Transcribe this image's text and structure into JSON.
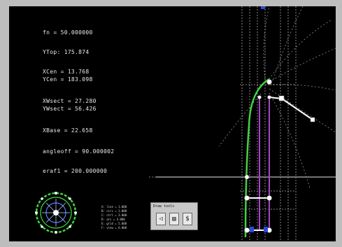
{
  "readouts": {
    "fn": "fn = 50.000000",
    "ytop": "YTop: 175.874",
    "xcen": "XCen = 13.768",
    "ycen": "YCen = 183.098",
    "xwsect": "XWsect = 27.280",
    "ywsect": "YWsect = 56.426",
    "xbase": "XBase = 22.658",
    "angleoff": "angleoff = 90.000002",
    "eraf": "eraf1 = 200.000000"
  },
  "legend_lines": [
    "A: line = 1.000",
    "B: circ = 2.000",
    "C: ctrl = 3.000",
    "D: arc = 4.000",
    "E: grid = 5.000",
    "F: view = 6.000"
  ],
  "toolbox": {
    "title": "Draw tools",
    "tools": [
      "◁",
      "▤",
      "$"
    ]
  },
  "colors": {
    "screen": "#000000",
    "bezel": "#bdbdbd",
    "curve": "#3fd23f",
    "axis": "#a040c0",
    "grid": "#cfcfcf"
  }
}
